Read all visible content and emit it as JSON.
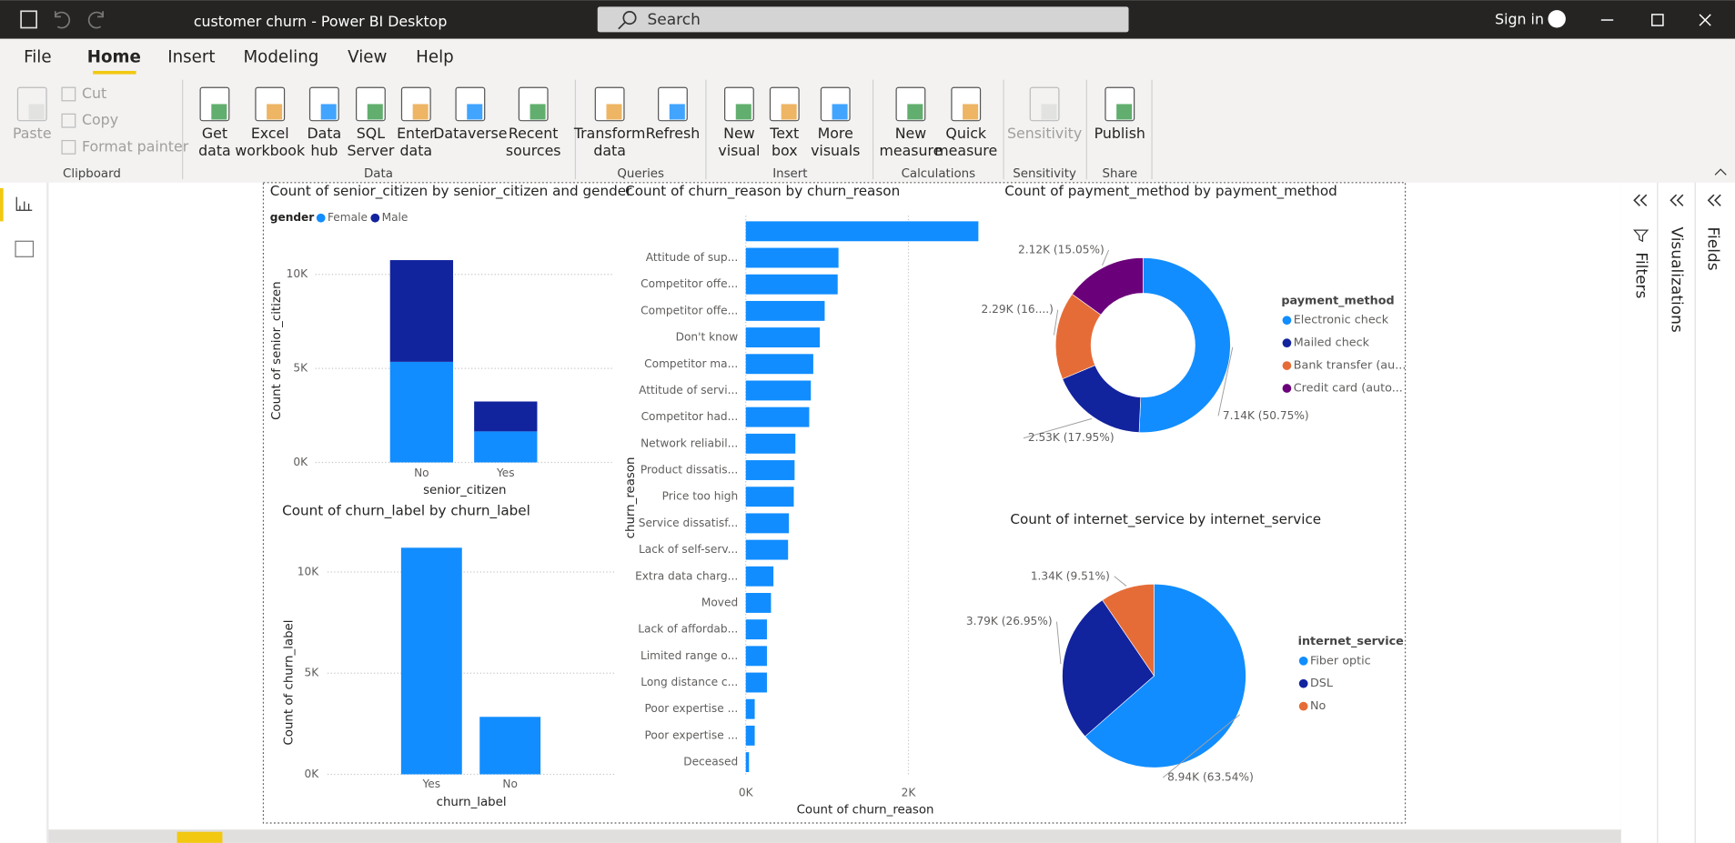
{
  "title_bar": {
    "app_title": "customer churn - Power BI Desktop",
    "search": "Search",
    "sign_in": "Sign in"
  },
  "menu": [
    "File",
    "Home",
    "Insert",
    "Modeling",
    "View",
    "Help"
  ],
  "ribbon": {
    "buttons": [
      [
        "Paste"
      ],
      [
        "Get",
        "data"
      ],
      [
        "Excel",
        "workbook"
      ],
      [
        "Data",
        "hub"
      ],
      [
        "SQL",
        "Server"
      ],
      [
        "Enter",
        "data"
      ],
      [
        "Dataverse"
      ],
      [
        "Recent",
        "sources"
      ],
      [
        "Transform",
        "data"
      ],
      [
        "Refresh"
      ],
      [
        "New",
        "visual"
      ],
      [
        "Text",
        "box"
      ],
      [
        "More",
        "visuals"
      ],
      [
        "New",
        "measure"
      ],
      [
        "Quick",
        "measure"
      ],
      [
        "Sensitivity"
      ],
      [
        "Publish"
      ]
    ],
    "small_buttons": [
      "Cut",
      "Copy",
      "Format painter"
    ],
    "groups": [
      "Clipboard",
      "Data",
      "Queries",
      "Insert",
      "Calculations",
      "Sensitivity",
      "Share"
    ]
  },
  "panes": [
    "Filters",
    "Visualizations",
    "Fields"
  ],
  "chart_data": [
    {
      "type": "bar",
      "stacked": true,
      "title": "Count of senior_citizen by senior_citizen and gender",
      "legend_title": "gender",
      "x_label": "senior_citizen",
      "y_label": "Count of senior_citizen",
      "categories": [
        "No",
        "Yes"
      ],
      "series": [
        {
          "name": "Female",
          "color": "#118DFF",
          "values": [
            5350,
            1650
          ]
        },
        {
          "name": "Male",
          "color": "#12239E",
          "values": [
            5410,
            1590
          ]
        }
      ],
      "ylim": [
        0,
        12000
      ],
      "yticks": [
        {
          "value": 0,
          "label": "0K"
        },
        {
          "value": 5000,
          "label": "5K"
        },
        {
          "value": 10000,
          "label": "10K"
        }
      ],
      "grid": true
    },
    {
      "type": "bar",
      "title": "Count of churn_label by churn_label",
      "x_label": "churn_label",
      "y_label": "Count of churn_label",
      "categories": [
        "Yes",
        "No"
      ],
      "values": [
        11200,
        2840
      ],
      "color": "#118DFF",
      "ylim": [
        0,
        12000
      ],
      "yticks": [
        {
          "value": 0,
          "label": "0K"
        },
        {
          "value": 5000,
          "label": "5K"
        },
        {
          "value": 10000,
          "label": "10K"
        }
      ],
      "grid": true
    },
    {
      "type": "bar",
      "orientation": "horizontal",
      "title": "Count of churn_reason by churn_reason",
      "x_label": "Count of churn_reason",
      "y_label": "churn_reason",
      "categories": [
        null,
        "Attitude of sup...",
        "Competitor offe...",
        "Competitor offe...",
        "Don't know",
        "Competitor ma...",
        "Attitude of servi...",
        "Competitor had...",
        "Network reliabil...",
        "Product dissatis...",
        "Price too high",
        "Service dissatisf...",
        "Lack of self-serv...",
        "Extra data charg...",
        "Moved",
        "Lack of affordab...",
        "Limited range o...",
        "Long distance c...",
        "Poor expertise ...",
        "Poor expertise ...",
        "Deceased"
      ],
      "values": [
        2860,
        1140,
        1130,
        970,
        910,
        830,
        800,
        780,
        610,
        600,
        590,
        530,
        520,
        340,
        310,
        260,
        260,
        260,
        110,
        110,
        40
      ],
      "color": "#118DFF",
      "xlim": [
        0,
        3000
      ],
      "xticks": [
        {
          "value": 0,
          "label": "0K"
        },
        {
          "value": 2000,
          "label": "2K"
        }
      ],
      "grid": true
    },
    {
      "type": "donut",
      "title": "Count of payment_method by payment_method",
      "legend_title": "payment_method",
      "categories": [
        "Electronic check",
        "Mailed check",
        "Bank transfer (au...",
        "Credit card (auto..."
      ],
      "values": [
        7140,
        2530,
        2290,
        2120
      ],
      "value_labels": [
        "7.14K (50.75%)",
        "2.53K (17.95%)",
        "2.29K (16....)",
        "2.12K (15.05%)"
      ],
      "colors": [
        "#118DFF",
        "#12239E",
        "#E66C37",
        "#6B007B"
      ]
    },
    {
      "type": "pie",
      "title": "Count of internet_service by internet_service",
      "legend_title": "internet_service",
      "categories": [
        "Fiber optic",
        "DSL",
        "No"
      ],
      "values": [
        8940,
        3790,
        1340
      ],
      "value_labels": [
        "8.94K (63.54%)",
        "3.79K (26.95%)",
        "1.34K (9.51%)"
      ],
      "colors": [
        "#118DFF",
        "#12239E",
        "#E66C37"
      ]
    }
  ]
}
